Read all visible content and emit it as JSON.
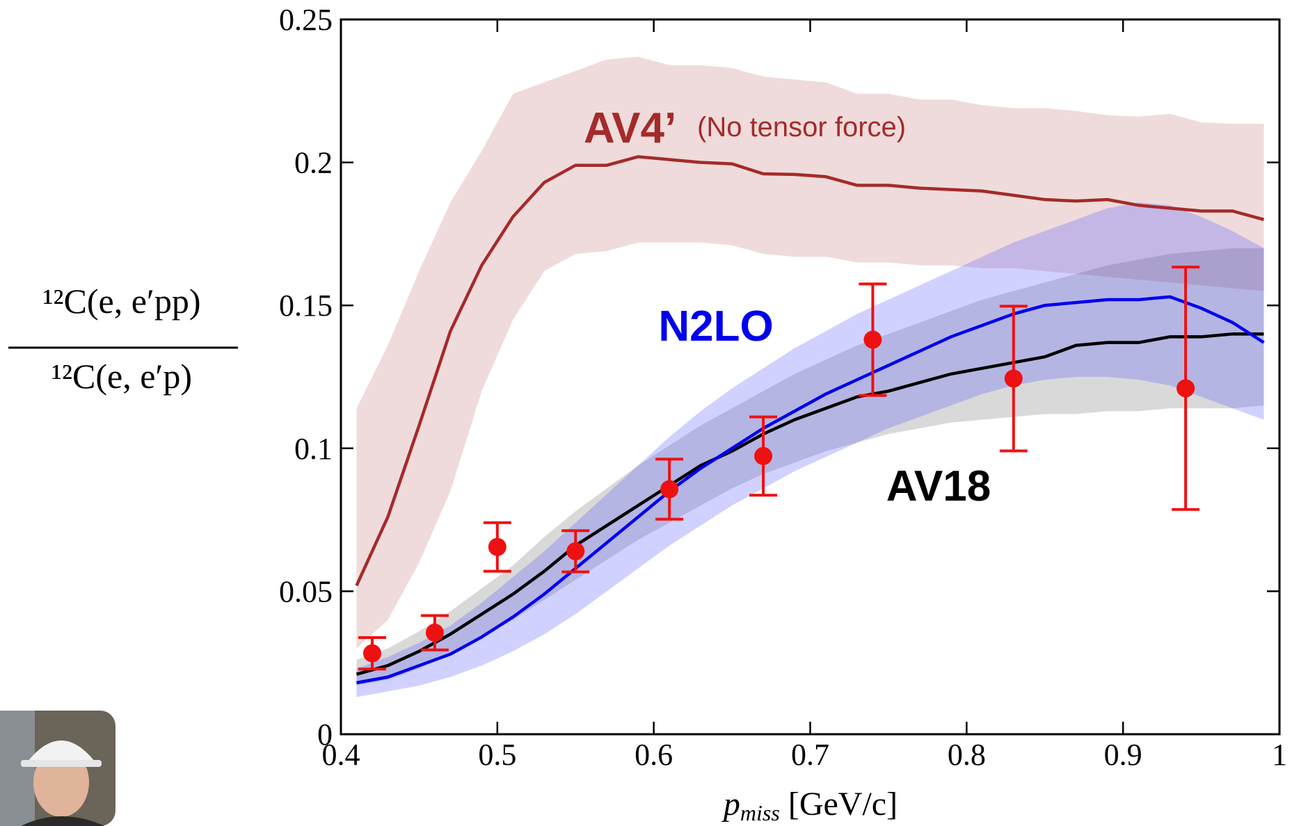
{
  "chart_data": {
    "type": "line",
    "xlabel": {
      "symbol": "p",
      "subscript": "miss",
      "unit": "[GeV/c]"
    },
    "ylabel": {
      "numerator": "¹²C(e, e′pp)",
      "denominator": "¹²C(e, e′p)"
    },
    "annotations": [
      "(No tensor force)"
    ],
    "x": [
      0.41,
      0.43,
      0.45,
      0.47,
      0.49,
      0.51,
      0.53,
      0.55,
      0.57,
      0.59,
      0.61,
      0.63,
      0.65,
      0.67,
      0.69,
      0.71,
      0.73,
      0.75,
      0.77,
      0.79,
      0.81,
      0.83,
      0.85,
      0.87,
      0.89,
      0.91,
      0.93,
      0.95,
      0.97,
      0.99
    ],
    "series": [
      {
        "name": "AV4’",
        "color": "#a52a2a",
        "band_color": "rgba(190,110,110,0.25)",
        "values": [
          0.052,
          0.076,
          0.108,
          0.141,
          0.164,
          0.181,
          0.193,
          0.199,
          0.199,
          0.202,
          0.201,
          0.2,
          0.1995,
          0.196,
          0.1958,
          0.195,
          0.192,
          0.192,
          0.191,
          0.1905,
          0.19,
          0.1885,
          0.187,
          0.1865,
          0.187,
          0.185,
          0.184,
          0.183,
          0.183,
          0.18
        ],
        "upper": [
          0.114,
          0.136,
          0.162,
          0.186,
          0.204,
          0.224,
          0.228,
          0.232,
          0.236,
          0.237,
          0.234,
          0.234,
          0.233,
          0.23,
          0.229,
          0.228,
          0.224,
          0.224,
          0.222,
          0.222,
          0.22,
          0.219,
          0.219,
          0.218,
          0.2165,
          0.216,
          0.217,
          0.214,
          0.2135,
          0.2135
        ],
        "lower": [
          0.03,
          0.04,
          0.06,
          0.085,
          0.12,
          0.145,
          0.162,
          0.168,
          0.169,
          0.172,
          0.172,
          0.172,
          0.171,
          0.168,
          0.167,
          0.167,
          0.165,
          0.165,
          0.164,
          0.164,
          0.163,
          0.163,
          0.162,
          0.161,
          0.16,
          0.159,
          0.158,
          0.157,
          0.156,
          0.155
        ]
      },
      {
        "name": "AV18",
        "color": "#000000",
        "band_color": "rgba(0,0,0,0.15)",
        "values": [
          0.021,
          0.024,
          0.029,
          0.035,
          0.042,
          0.049,
          0.057,
          0.066,
          0.073,
          0.08,
          0.087,
          0.094,
          0.099,
          0.105,
          0.11,
          0.114,
          0.118,
          0.12,
          0.123,
          0.126,
          0.128,
          0.13,
          0.132,
          0.136,
          0.137,
          0.137,
          0.139,
          0.139,
          0.14,
          0.14
        ],
        "upper": [
          0.026,
          0.03,
          0.036,
          0.043,
          0.051,
          0.059,
          0.069,
          0.078,
          0.086,
          0.094,
          0.101,
          0.108,
          0.114,
          0.12,
          0.126,
          0.131,
          0.136,
          0.14,
          0.144,
          0.148,
          0.152,
          0.155,
          0.158,
          0.161,
          0.164,
          0.166,
          0.168,
          0.169,
          0.17,
          0.17
        ],
        "lower": [
          0.017,
          0.019,
          0.023,
          0.028,
          0.034,
          0.04,
          0.047,
          0.054,
          0.061,
          0.068,
          0.074,
          0.08,
          0.086,
          0.091,
          0.095,
          0.099,
          0.102,
          0.105,
          0.107,
          0.109,
          0.11,
          0.111,
          0.112,
          0.112,
          0.113,
          0.113,
          0.114,
          0.114,
          0.114,
          0.115
        ]
      },
      {
        "name": "N2LO",
        "color": "#0000ee",
        "band_color": "rgba(90,90,255,0.28)",
        "values": [
          0.018,
          0.02,
          0.024,
          0.028,
          0.034,
          0.041,
          0.049,
          0.058,
          0.067,
          0.076,
          0.085,
          0.093,
          0.1,
          0.107,
          0.113,
          0.119,
          0.124,
          0.129,
          0.134,
          0.139,
          0.143,
          0.147,
          0.15,
          0.151,
          0.152,
          0.152,
          0.153,
          0.149,
          0.144,
          0.137
        ],
        "upper": [
          0.023,
          0.027,
          0.032,
          0.038,
          0.046,
          0.055,
          0.064,
          0.074,
          0.084,
          0.094,
          0.104,
          0.113,
          0.121,
          0.128,
          0.135,
          0.141,
          0.147,
          0.152,
          0.157,
          0.162,
          0.167,
          0.172,
          0.176,
          0.18,
          0.184,
          0.186,
          0.185,
          0.181,
          0.176,
          0.17
        ],
        "lower": [
          0.013,
          0.015,
          0.017,
          0.02,
          0.024,
          0.029,
          0.035,
          0.042,
          0.05,
          0.058,
          0.066,
          0.073,
          0.08,
          0.086,
          0.092,
          0.097,
          0.102,
          0.107,
          0.111,
          0.115,
          0.119,
          0.122,
          0.124,
          0.125,
          0.125,
          0.124,
          0.122,
          0.118,
          0.114,
          0.11
        ]
      }
    ],
    "data_points": {
      "color": "#ee1111",
      "x": [
        0.42,
        0.46,
        0.5,
        0.55,
        0.61,
        0.67,
        0.74,
        0.83,
        0.94
      ],
      "values": [
        0.0283,
        0.0355,
        0.0655,
        0.064,
        0.0857,
        0.0973,
        0.138,
        0.1244,
        0.121
      ],
      "errors": [
        0.0055,
        0.006,
        0.0085,
        0.0072,
        0.0105,
        0.0137,
        0.0195,
        0.0253,
        0.0424
      ]
    },
    "xlim": [
      0.4,
      1
    ],
    "xticks": [
      0.4,
      0.5,
      0.6,
      0.7,
      0.8,
      0.9,
      1
    ],
    "ylim": [
      0,
      0.25
    ],
    "yticks": [
      0,
      0.05,
      0.1,
      0.15,
      0.2,
      0.25
    ]
  }
}
